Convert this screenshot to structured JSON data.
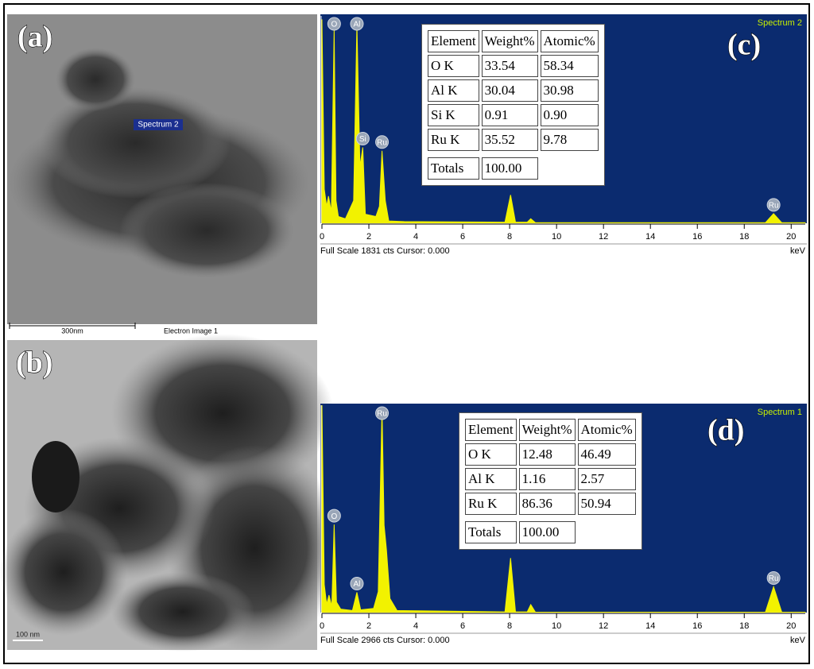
{
  "panels": {
    "a": "(a)",
    "b": "(b)",
    "c": "(c)",
    "d": "(d)"
  },
  "images": [
    {
      "marker": "Spectrum 2",
      "scale": "300nm",
      "caption": "Electron Image 1"
    },
    {
      "scale": "100 nm"
    }
  ],
  "tables": [
    {
      "header": [
        "Element",
        "Weight%",
        "Atomic%"
      ],
      "rows": [
        [
          "O K",
          "33.54",
          "58.34"
        ],
        [
          "Al K",
          "30.04",
          "30.98"
        ],
        [
          "Si K",
          "0.91",
          "0.90"
        ],
        [
          "Ru K",
          "35.52",
          "9.78"
        ]
      ],
      "totals": [
        "Totals",
        "100.00"
      ]
    },
    {
      "header": [
        "Element",
        "Weight%",
        "Atomic%"
      ],
      "rows": [
        [
          "O K",
          "12.48",
          "46.49"
        ],
        [
          "Al K",
          "1.16",
          "2.57"
        ],
        [
          "Ru K",
          "86.36",
          "50.94"
        ]
      ],
      "totals": [
        "Totals",
        "100.00"
      ]
    }
  ],
  "chart_data": [
    {
      "type": "area",
      "title": "Spectrum 2",
      "footer": "Full Scale 1831 cts Cursor: 0.000",
      "x_label": "keV",
      "color": "#f2f200",
      "background": "#0b2b6f",
      "xlim": [
        0,
        20.6
      ],
      "xticks": [
        0,
        2,
        4,
        6,
        8,
        10,
        12,
        14,
        16,
        18,
        20
      ],
      "ylim": [
        0,
        1831
      ],
      "x": [
        0,
        0.1,
        0.2,
        0.28,
        0.4,
        0.52,
        0.6,
        0.7,
        1.0,
        1.35,
        1.49,
        1.62,
        1.74,
        1.85,
        2.3,
        2.45,
        2.56,
        2.7,
        2.85,
        3.5,
        7.8,
        8.04,
        8.25,
        8.75,
        8.9,
        9.1,
        18.9,
        19.25,
        19.6,
        20.6
      ],
      "values": [
        1800,
        300,
        150,
        240,
        100,
        1720,
        200,
        60,
        40,
        200,
        1760,
        500,
        670,
        80,
        60,
        150,
        640,
        200,
        20,
        15,
        10,
        250,
        10,
        10,
        40,
        5,
        5,
        85,
        5,
        5
      ],
      "peaks": [
        {
          "x": 0.52,
          "label": "O"
        },
        {
          "x": 1.49,
          "label": "Al"
        },
        {
          "x": 1.74,
          "label": "Si"
        },
        {
          "x": 2.56,
          "label": "Ru"
        },
        {
          "x": 19.25,
          "label": "Ru"
        }
      ]
    },
    {
      "type": "area",
      "title": "Spectrum 1",
      "footer": "Full Scale 2966 cts Cursor: 0.000",
      "x_label": "keV",
      "color": "#f2f200",
      "background": "#0b2b6f",
      "xlim": [
        0,
        20.6
      ],
      "xticks": [
        0,
        2,
        4,
        6,
        8,
        10,
        12,
        14,
        16,
        18,
        20
      ],
      "ylim": [
        0,
        2966
      ],
      "x": [
        0,
        0.1,
        0.2,
        0.3,
        0.42,
        0.52,
        0.62,
        0.8,
        1.3,
        1.49,
        1.65,
        2.2,
        2.4,
        2.56,
        2.65,
        2.75,
        2.9,
        3.2,
        7.8,
        8.04,
        8.25,
        8.75,
        8.9,
        9.1,
        18.9,
        19.25,
        19.6,
        20.6
      ],
      "values": [
        2966,
        400,
        120,
        250,
        90,
        1260,
        150,
        50,
        30,
        290,
        40,
        60,
        300,
        2940,
        1250,
        900,
        200,
        30,
        10,
        780,
        10,
        10,
        115,
        5,
        5,
        370,
        5,
        5
      ],
      "peaks": [
        {
          "x": 0.52,
          "label": "O"
        },
        {
          "x": 1.49,
          "label": "Al"
        },
        {
          "x": 2.56,
          "label": "Ru"
        },
        {
          "x": 19.25,
          "label": "Ru"
        }
      ]
    }
  ]
}
